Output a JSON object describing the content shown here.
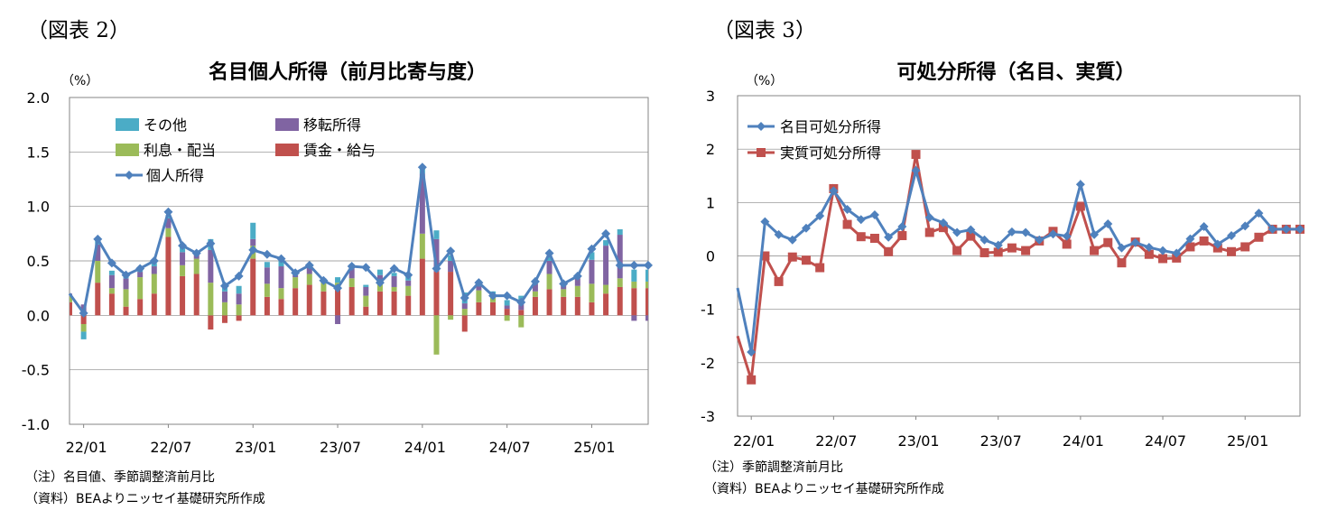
{
  "left": {
    "figure_label": "（図表 2）",
    "unit": "（%）",
    "note1": "（注）名目値、季節調整済前月比",
    "note2": "（資料）BEAよりニッセイ基礎研究所作成"
  },
  "right": {
    "figure_label": "（図表 3）",
    "unit": "（%）",
    "note1": "（注）季節調整済前月比",
    "note2": "（資料）BEAよりニッセイ基礎研究所作成"
  },
  "colors": {
    "other": "#4bacc6",
    "transfer": "#8064a2",
    "interest": "#9bbb59",
    "wages": "#c0504d",
    "personal_income": "#4f81bd",
    "nominal": "#4f81bd",
    "real": "#c0504d",
    "axis": "#868686"
  },
  "chart_data": [
    {
      "type": "bar",
      "stacked": true,
      "title": "名目個人所得（前月比寄与度）",
      "x_tick_labels": [
        "22/01",
        "22/07",
        "23/01",
        "23/07",
        "24/01",
        "24/07",
        "25/01"
      ],
      "y_tick_labels": [
        "2.0",
        "1.5",
        "1.0",
        "0.5",
        "0.0",
        "-0.5",
        "-1.0"
      ],
      "ylim": [
        -1.0,
        2.0
      ],
      "x_range": [
        "21/12",
        "25/05"
      ],
      "legend_position": "top-left",
      "categories": [
        "21/12",
        "22/01",
        "22/02",
        "22/03",
        "22/04",
        "22/05",
        "22/06",
        "22/07",
        "22/08",
        "22/09",
        "22/10",
        "22/11",
        "22/12",
        "23/01",
        "23/02",
        "23/03",
        "23/04",
        "23/05",
        "23/06",
        "23/07",
        "23/08",
        "23/09",
        "23/10",
        "23/11",
        "23/12",
        "24/01",
        "24/02",
        "24/03",
        "24/04",
        "24/05",
        "24/06",
        "24/07",
        "24/08",
        "24/09",
        "24/10",
        "24/11",
        "24/12",
        "25/01",
        "25/02",
        "25/03",
        "25/04",
        "25/05"
      ],
      "series": [
        {
          "name": "賃金・給与",
          "kind": "bar",
          "values": [
            0.12,
            -0.08,
            0.3,
            0.2,
            0.08,
            0.15,
            0.2,
            0.72,
            0.36,
            0.38,
            -0.13,
            -0.07,
            -0.05,
            0.52,
            0.17,
            0.15,
            0.25,
            0.28,
            0.22,
            0.25,
            0.26,
            0.08,
            0.22,
            0.22,
            0.18,
            0.52,
            0.4,
            0.4,
            -0.15,
            0.12,
            0.12,
            0.06,
            0.05,
            0.17,
            0.24,
            0.17,
            0.17,
            0.12,
            0.2,
            0.26,
            0.25,
            0.25
          ]
        },
        {
          "name": "利息・配当",
          "kind": "bar",
          "values": [
            0.06,
            -0.07,
            0.2,
            0.05,
            0.16,
            0.2,
            0.18,
            0.08,
            0.1,
            0.14,
            0.3,
            0.12,
            0.1,
            0.12,
            0.12,
            0.1,
            0.1,
            0.1,
            0.08,
            0.05,
            0.08,
            0.1,
            0.08,
            0.04,
            0.09,
            0.23,
            -0.36,
            -0.04,
            0.06,
            0.11,
            0.05,
            -0.05,
            -0.11,
            0.05,
            0.14,
            0.07,
            0.1,
            0.17,
            0.08,
            0.08,
            0.06,
            0.06
          ]
        },
        {
          "name": "移転所得",
          "kind": "bar",
          "values": [
            0.02,
            0.1,
            0.15,
            0.12,
            0.1,
            0.05,
            0.07,
            0.09,
            0.12,
            0.04,
            0.3,
            0.1,
            0.1,
            0.06,
            0.15,
            0.2,
            0.02,
            0.06,
            0.02,
            -0.08,
            0.09,
            0.08,
            0.07,
            0.1,
            0.05,
            0.55,
            0.3,
            0.1,
            0.05,
            0.04,
            0.03,
            0.03,
            0.05,
            0.07,
            0.12,
            0.04,
            0.07,
            0.22,
            0.36,
            0.4,
            -0.05,
            -0.05
          ]
        },
        {
          "name": "その他",
          "kind": "bar",
          "values": [
            0.0,
            -0.07,
            0.05,
            0.04,
            0.03,
            0.03,
            0.03,
            0.03,
            0.05,
            0.02,
            0.1,
            0.07,
            0.07,
            0.15,
            0.05,
            0.05,
            0.02,
            0.02,
            0.02,
            0.05,
            0.04,
            0.02,
            0.05,
            0.03,
            0.05,
            0.06,
            0.08,
            0.05,
            0.1,
            0.05,
            0.02,
            0.05,
            0.08,
            0.02,
            0.04,
            0.01,
            0.02,
            0.07,
            0.05,
            0.05,
            0.11,
            0.11
          ]
        },
        {
          "name": "個人所得",
          "kind": "line",
          "values": [
            0.2,
            0.02,
            0.7,
            0.48,
            0.37,
            0.43,
            0.5,
            0.95,
            0.64,
            0.57,
            0.66,
            0.27,
            0.36,
            0.6,
            0.56,
            0.52,
            0.39,
            0.46,
            0.32,
            0.25,
            0.45,
            0.44,
            0.3,
            0.43,
            0.37,
            1.36,
            0.43,
            0.59,
            0.16,
            0.3,
            0.18,
            0.18,
            0.12,
            0.31,
            0.57,
            0.29,
            0.36,
            0.61,
            0.75,
            0.46,
            0.46,
            0.46
          ]
        }
      ]
    },
    {
      "type": "line",
      "title": "可処分所得（名目、実質）",
      "x_tick_labels": [
        "22/01",
        "22/07",
        "23/01",
        "23/07",
        "24/01",
        "24/07",
        "25/01"
      ],
      "y_tick_labels": [
        "3",
        "2",
        "1",
        "0",
        "-1",
        "-2",
        "-3"
      ],
      "ylim": [
        -3,
        3
      ],
      "x_range": [
        "21/12",
        "25/05"
      ],
      "legend_position": "top-left",
      "categories": [
        "21/12",
        "22/01",
        "22/02",
        "22/03",
        "22/04",
        "22/05",
        "22/06",
        "22/07",
        "22/08",
        "22/09",
        "22/10",
        "22/11",
        "22/12",
        "23/01",
        "23/02",
        "23/03",
        "23/04",
        "23/05",
        "23/06",
        "23/07",
        "23/08",
        "23/09",
        "23/10",
        "23/11",
        "23/12",
        "24/01",
        "24/02",
        "24/03",
        "24/04",
        "24/05",
        "24/06",
        "24/07",
        "24/08",
        "24/09",
        "24/10",
        "24/11",
        "24/12",
        "25/01",
        "25/02",
        "25/03",
        "25/04",
        "25/05"
      ],
      "series": [
        {
          "name": "名目可処分所得",
          "values": [
            -0.6,
            -1.8,
            0.64,
            0.4,
            0.3,
            0.52,
            0.75,
            1.22,
            0.87,
            0.68,
            0.77,
            0.35,
            0.55,
            1.6,
            0.72,
            0.62,
            0.44,
            0.49,
            0.3,
            0.2,
            0.45,
            0.44,
            0.3,
            0.41,
            0.37,
            1.34,
            0.4,
            0.6,
            0.15,
            0.25,
            0.16,
            0.1,
            0.05,
            0.32,
            0.55,
            0.22,
            0.38,
            0.56,
            0.8,
            0.5,
            0.5,
            0.5
          ]
        },
        {
          "name": "実質可処分所得",
          "values": [
            -1.5,
            -2.32,
            0.0,
            -0.48,
            -0.02,
            -0.08,
            -0.22,
            1.26,
            0.59,
            0.36,
            0.33,
            0.08,
            0.38,
            1.9,
            0.44,
            0.53,
            0.1,
            0.37,
            0.06,
            0.07,
            0.15,
            0.1,
            0.28,
            0.46,
            0.22,
            0.93,
            0.1,
            0.25,
            -0.13,
            0.26,
            0.03,
            -0.05,
            -0.04,
            0.17,
            0.28,
            0.15,
            0.08,
            0.17,
            0.35,
            0.5,
            0.5,
            0.5
          ]
        }
      ]
    }
  ]
}
